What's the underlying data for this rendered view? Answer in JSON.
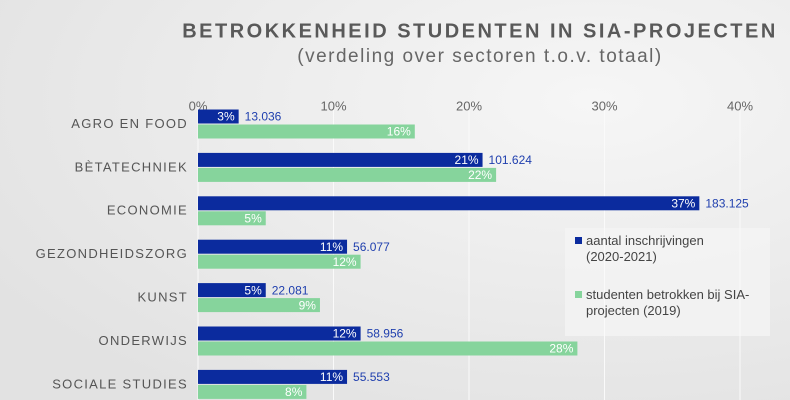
{
  "chart_data": {
    "type": "bar",
    "orientation": "horizontal",
    "title": "BETROKKENHEID STUDENTEN IN SIA-PROJECTEN",
    "subtitle": "(verdeling over sectoren t.o.v. totaal)",
    "categories": [
      "AGRO EN FOOD",
      "BÈTATECHNIEK",
      "ECONOMIE",
      "GEZONDHEIDSZORG",
      "KUNST",
      "ONDERWIJS",
      "SOCIALE STUDIES"
    ],
    "series": [
      {
        "name": "aantal inschrijvingen (2020-2021)",
        "color": "#0b2b9e",
        "values": [
          3,
          21,
          37,
          11,
          5,
          12,
          11
        ],
        "value_labels": [
          "3%",
          "21%",
          "37%",
          "11%",
          "5%",
          "12%",
          "11%"
        ],
        "counts": [
          13036,
          101624,
          183125,
          56077,
          22081,
          58956,
          55553
        ],
        "count_labels": [
          "13.036",
          "101.624",
          "183.125",
          "56.077",
          "22.081",
          "58.956",
          "55.553"
        ]
      },
      {
        "name": "studenten betrokken bij SIA-projecten (2019)",
        "color": "#86d49c",
        "values": [
          16,
          22,
          5,
          12,
          9,
          28,
          8
        ],
        "value_labels": [
          "16%",
          "22%",
          "5%",
          "12%",
          "9%",
          "28%",
          "8%"
        ]
      }
    ],
    "xlim": [
      0,
      40
    ],
    "xticks": [
      {
        "value": 0,
        "label": "0%"
      },
      {
        "value": 10,
        "label": "10%"
      },
      {
        "value": 20,
        "label": "20%"
      },
      {
        "value": 30,
        "label": "30%"
      },
      {
        "value": 40,
        "label": "40%"
      }
    ],
    "grid": true,
    "legend": "right"
  }
}
